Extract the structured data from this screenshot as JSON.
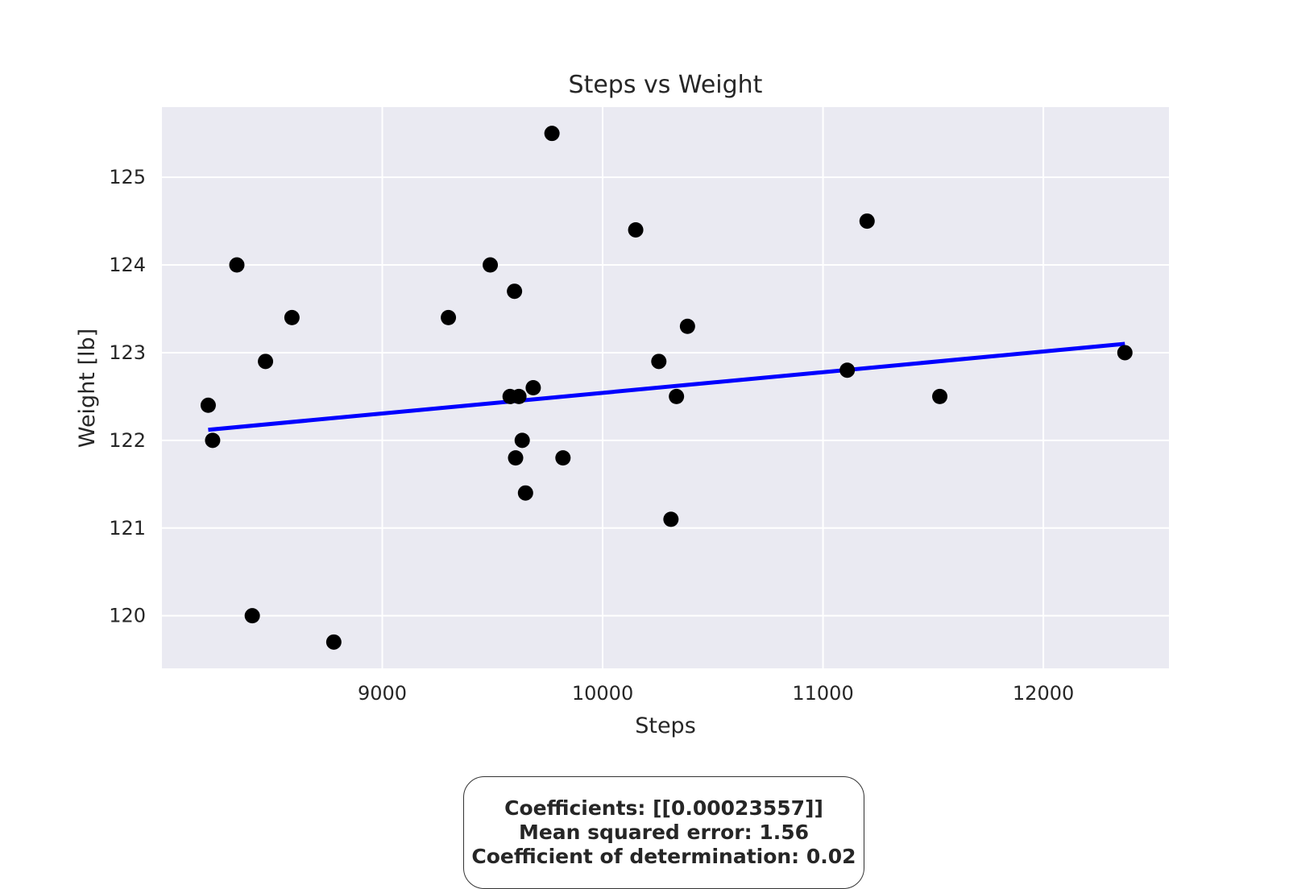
{
  "chart_data": {
    "type": "scatter",
    "title": "Steps vs Weight",
    "xlabel": "Steps",
    "ylabel": "Weight [lb]",
    "xlim": [
      8000,
      12570
    ],
    "ylim": [
      119.4,
      125.8
    ],
    "xticks": [
      9000,
      10000,
      11000,
      12000
    ],
    "yticks": [
      120,
      121,
      122,
      123,
      124,
      125
    ],
    "grid": true,
    "background": "#eaeaf2",
    "grid_color": "#ffffff",
    "point_color": "#000000",
    "line_color": "#0000ff",
    "points": [
      {
        "x": 8210,
        "y": 122.4
      },
      {
        "x": 8230,
        "y": 122.0
      },
      {
        "x": 8340,
        "y": 124.0
      },
      {
        "x": 8410,
        "y": 120.0
      },
      {
        "x": 8470,
        "y": 122.9
      },
      {
        "x": 8590,
        "y": 123.4
      },
      {
        "x": 8780,
        "y": 119.7
      },
      {
        "x": 9300,
        "y": 123.4
      },
      {
        "x": 9490,
        "y": 124.0
      },
      {
        "x": 9580,
        "y": 122.5
      },
      {
        "x": 9600,
        "y": 123.7
      },
      {
        "x": 9605,
        "y": 121.8
      },
      {
        "x": 9620,
        "y": 122.5
      },
      {
        "x": 9635,
        "y": 122.0
      },
      {
        "x": 9650,
        "y": 121.4
      },
      {
        "x": 9685,
        "y": 122.6
      },
      {
        "x": 9770,
        "y": 125.5
      },
      {
        "x": 9820,
        "y": 121.8
      },
      {
        "x": 10150,
        "y": 124.4
      },
      {
        "x": 10255,
        "y": 122.9
      },
      {
        "x": 10310,
        "y": 121.1
      },
      {
        "x": 10335,
        "y": 122.5
      },
      {
        "x": 10385,
        "y": 123.3
      },
      {
        "x": 11110,
        "y": 122.8
      },
      {
        "x": 11200,
        "y": 124.5
      },
      {
        "x": 11530,
        "y": 122.5
      },
      {
        "x": 12370,
        "y": 123.0
      }
    ],
    "regression_line": {
      "x": [
        8210,
        12370
      ],
      "y": [
        122.12,
        123.1
      ]
    }
  },
  "stats": {
    "coefficients": "Coefficients: [[0.00023557]]",
    "mse": "Mean squared error: 1.56",
    "r2": "Coefficient of determination: 0.02"
  }
}
